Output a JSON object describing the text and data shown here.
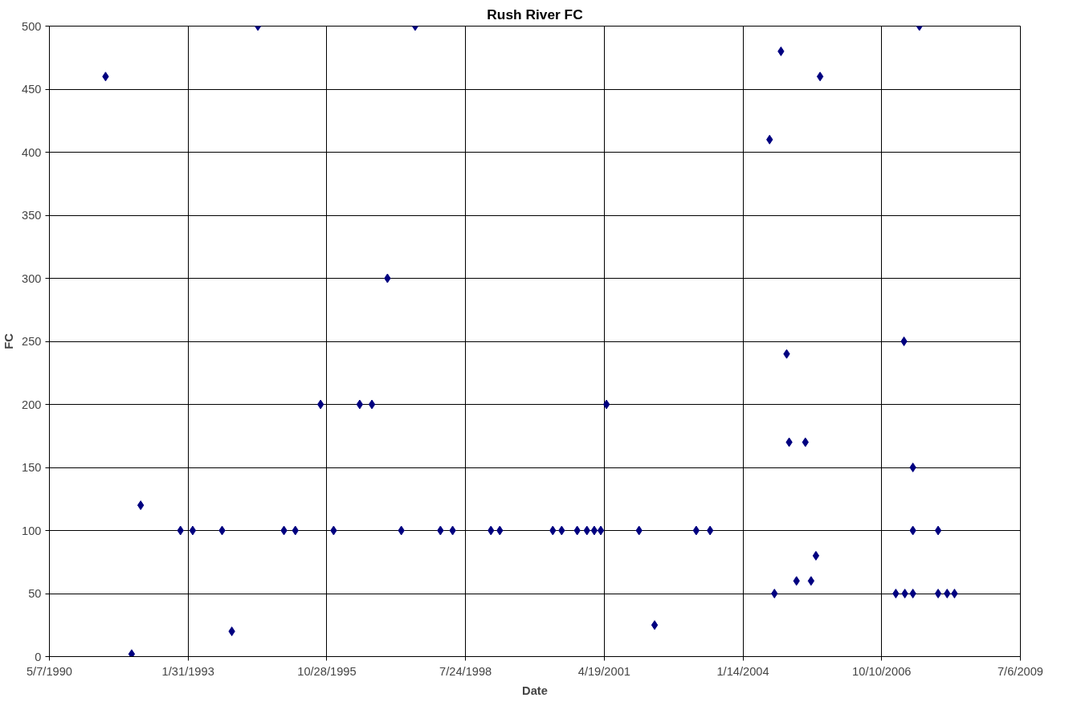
{
  "chart_data": {
    "type": "scatter",
    "title": "Rush River FC",
    "xlabel": "Date",
    "ylabel": "FC",
    "x": [
      "1991-06-16",
      "1991-12-21",
      "1992-02-24",
      "1992-12-07",
      "1993-03-05",
      "1993-10-03",
      "1993-12-12",
      "1994-06-18",
      "1994-12-23",
      "1995-03-15",
      "1995-09-13",
      "1995-12-16",
      "1996-06-21",
      "1996-09-17",
      "1997-01-07",
      "1997-04-17",
      "1997-07-26",
      "1998-01-24",
      "1998-04-22",
      "1999-01-23",
      "1999-03-28",
      "2000-04-13",
      "2000-06-16",
      "2000-10-06",
      "2000-12-15",
      "2001-02-06",
      "2001-03-25",
      "2001-05-05",
      "2001-12-26",
      "2002-04-17",
      "2003-02-11",
      "2003-05-22",
      "2004-07-24",
      "2004-08-28",
      "2004-10-14",
      "2004-11-24",
      "2004-12-12",
      "2005-02-03",
      "2005-04-08",
      "2005-05-19",
      "2005-06-23",
      "2005-07-23",
      "2007-01-20",
      "2007-03-20",
      "2007-03-26",
      "2007-05-23",
      "2007-05-23",
      "2007-05-23",
      "2007-07-09",
      "2007-11-21",
      "2007-11-21",
      "2008-01-25",
      "2008-03-18"
    ],
    "series": [
      {
        "color": "#000080",
        "values": [
          460,
          2,
          120,
          100,
          100,
          100,
          20,
          500,
          100,
          100,
          200,
          100,
          200,
          200,
          300,
          100,
          500,
          100,
          100,
          100,
          100,
          100,
          100,
          100,
          100,
          100,
          100,
          200,
          100,
          25,
          100,
          100,
          410,
          50,
          480,
          240,
          170,
          60,
          170,
          60,
          80,
          460,
          50,
          250,
          50,
          150,
          100,
          50,
          500,
          100,
          50,
          50,
          50
        ]
      }
    ],
    "xlim": [
      "1990-05-07",
      "2009-07-06"
    ],
    "xticks": [
      {
        "value": "1990-05-07",
        "label": "5/7/1990"
      },
      {
        "value": "1993-01-31",
        "label": "1/31/1993"
      },
      {
        "value": "1995-10-28",
        "label": "10/28/1995"
      },
      {
        "value": "1998-07-24",
        "label": "7/24/1998"
      },
      {
        "value": "2001-04-19",
        "label": "4/19/2001"
      },
      {
        "value": "2004-01-14",
        "label": "1/14/2004"
      },
      {
        "value": "2006-10-10",
        "label": "10/10/2006"
      },
      {
        "value": "2009-07-06",
        "label": "7/6/2009"
      }
    ],
    "ylim": [
      0,
      500
    ],
    "yticks": [
      0,
      50,
      100,
      150,
      200,
      250,
      300,
      350,
      400,
      450,
      500
    ],
    "grid": true,
    "marker": "diamond"
  }
}
